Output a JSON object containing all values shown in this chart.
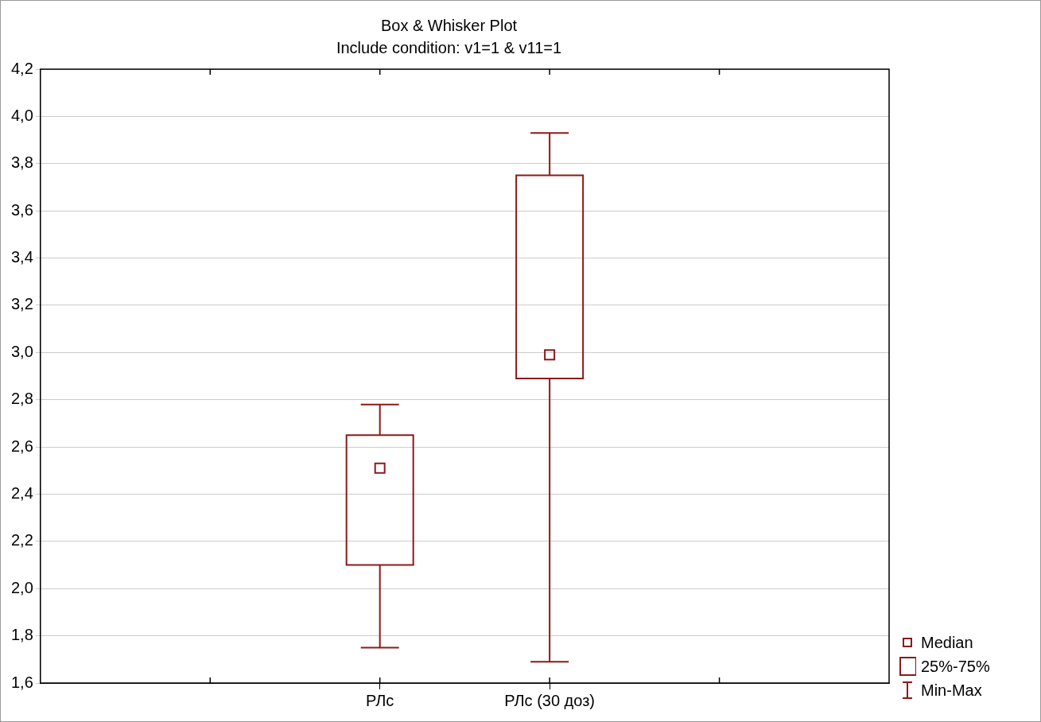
{
  "chart_data": {
    "type": "box",
    "title": "Box & Whisker Plot",
    "subtitle": "Include condition: v1=1 & v11=1",
    "categories": [
      "РЛс",
      "РЛс (30 доз)"
    ],
    "boxes": [
      {
        "low": 1.75,
        "q1": 2.1,
        "median": 2.51,
        "q3": 2.65,
        "high": 2.78
      },
      {
        "low": 1.69,
        "q1": 2.89,
        "median": 2.99,
        "q3": 3.75,
        "high": 3.93
      }
    ],
    "color": "#8b1a1a",
    "ylim": [
      1.6,
      4.2
    ],
    "yticks": [
      {
        "value": 1.6,
        "label": "1,6"
      },
      {
        "value": 1.8,
        "label": "1,8"
      },
      {
        "value": 2.0,
        "label": "2,0"
      },
      {
        "value": 2.2,
        "label": "2,2"
      },
      {
        "value": 2.4,
        "label": "2,4"
      },
      {
        "value": 2.6,
        "label": "2,6"
      },
      {
        "value": 2.8,
        "label": "2,8"
      },
      {
        "value": 3.0,
        "label": "3,0"
      },
      {
        "value": 3.2,
        "label": "3,2"
      },
      {
        "value": 3.4,
        "label": "3,4"
      },
      {
        "value": 3.6,
        "label": "3,6"
      },
      {
        "value": 3.8,
        "label": "3,8"
      },
      {
        "value": 4.0,
        "label": "4,0"
      },
      {
        "value": 4.2,
        "label": "4,2"
      }
    ],
    "grid": "y",
    "annotations": [
      "Median",
      "25%-75%",
      "Min-Max"
    ]
  }
}
